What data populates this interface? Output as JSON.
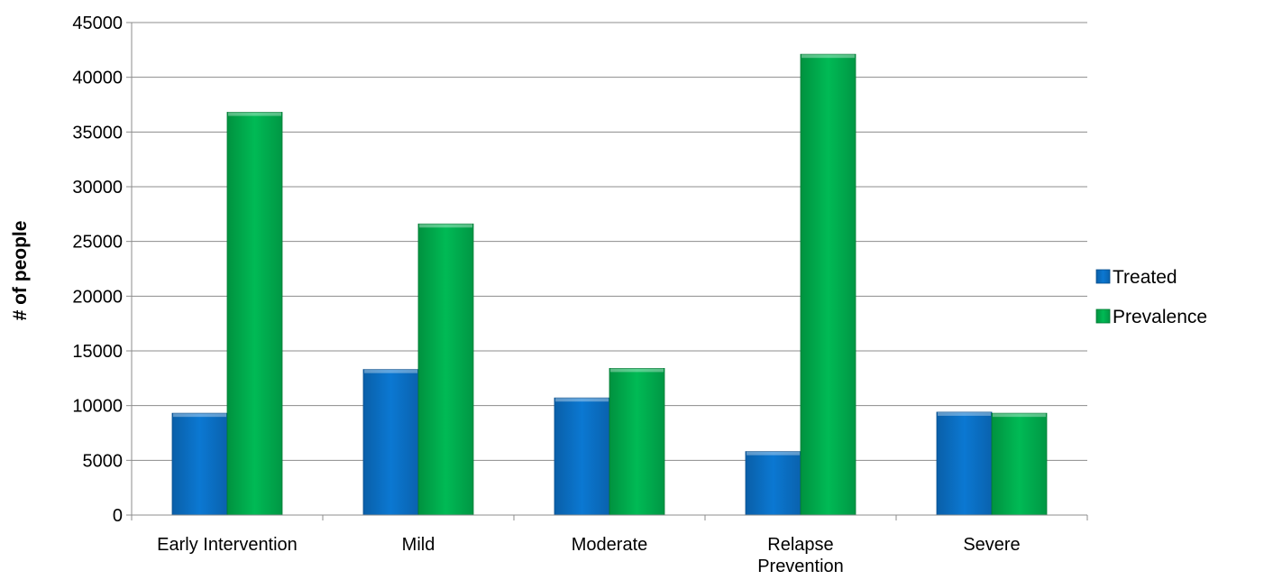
{
  "chart_data": {
    "type": "bar",
    "title": "",
    "xlabel": "",
    "ylabel": "# of people",
    "ylim": [
      0,
      45000
    ],
    "yticks": [
      0,
      5000,
      10000,
      15000,
      20000,
      25000,
      30000,
      35000,
      40000,
      45000
    ],
    "grid": true,
    "legend_position": "right",
    "categories": [
      "Early Intervention",
      "Mild",
      "Moderate",
      "Relapse Prevention",
      "Severe"
    ],
    "series": [
      {
        "name": "Treated",
        "color": "#0B72C8",
        "values": [
          9300,
          13300,
          10700,
          5800,
          9400
        ]
      },
      {
        "name": "Prevalence",
        "color": "#00B050",
        "values": [
          36800,
          26600,
          13400,
          42100,
          9300
        ]
      }
    ]
  }
}
